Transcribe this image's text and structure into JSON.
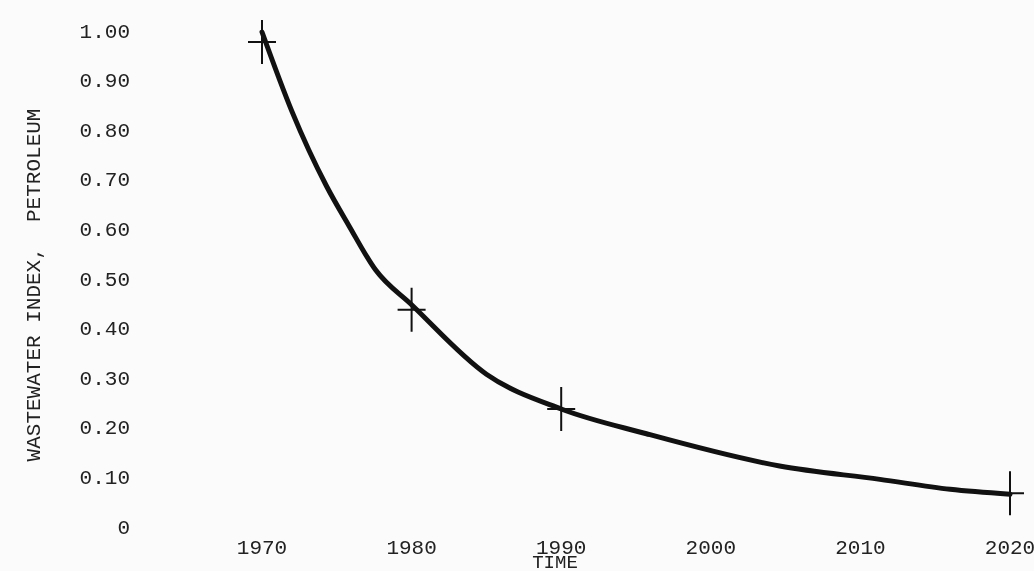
{
  "chart_data": {
    "type": "line",
    "xlabel": "TIME",
    "ylabel": "WASTEWATER INDEX,  PETROLEUM",
    "xlim": [
      1970,
      2020
    ],
    "xticks": [
      1970,
      1980,
      1990,
      2000,
      2010,
      2020
    ],
    "ylim": [
      0,
      1
    ],
    "yticks": [
      {
        "value": 0,
        "label": "0"
      },
      {
        "value": 0.1,
        "label": "0.10"
      },
      {
        "value": 0.2,
        "label": "0.20"
      },
      {
        "value": 0.3,
        "label": "0.30"
      },
      {
        "value": 0.4,
        "label": "0.40"
      },
      {
        "value": 0.5,
        "label": "0.50"
      },
      {
        "value": 0.6,
        "label": "0.60"
      },
      {
        "value": 0.7,
        "label": "0.70"
      },
      {
        "value": 0.8,
        "label": "0.80"
      },
      {
        "value": 0.9,
        "label": "0.90"
      },
      {
        "value": 1,
        "label": "1.00"
      }
    ],
    "series": [
      {
        "color": "#111111",
        "line_style": "solid",
        "x": [
          1970,
          1972.0,
          1974.3,
          1975.8,
          1977.6,
          1980,
          1985.0,
          1990,
          1995.7,
          2004.6,
          2011.3,
          2016.0,
          2020
        ],
        "values": [
          1.0,
          0.84,
          0.69,
          0.61,
          0.52,
          0.45,
          0.31,
          0.24,
          0.19,
          0.125,
          0.098,
          0.078,
          0.068
        ]
      },
      {
        "type": "scatter",
        "color": "#111111",
        "marker": "cross",
        "x": [
          1970,
          1980,
          1990,
          2020
        ],
        "values": [
          0.98,
          0.44,
          0.24,
          0.07
        ]
      }
    ]
  }
}
